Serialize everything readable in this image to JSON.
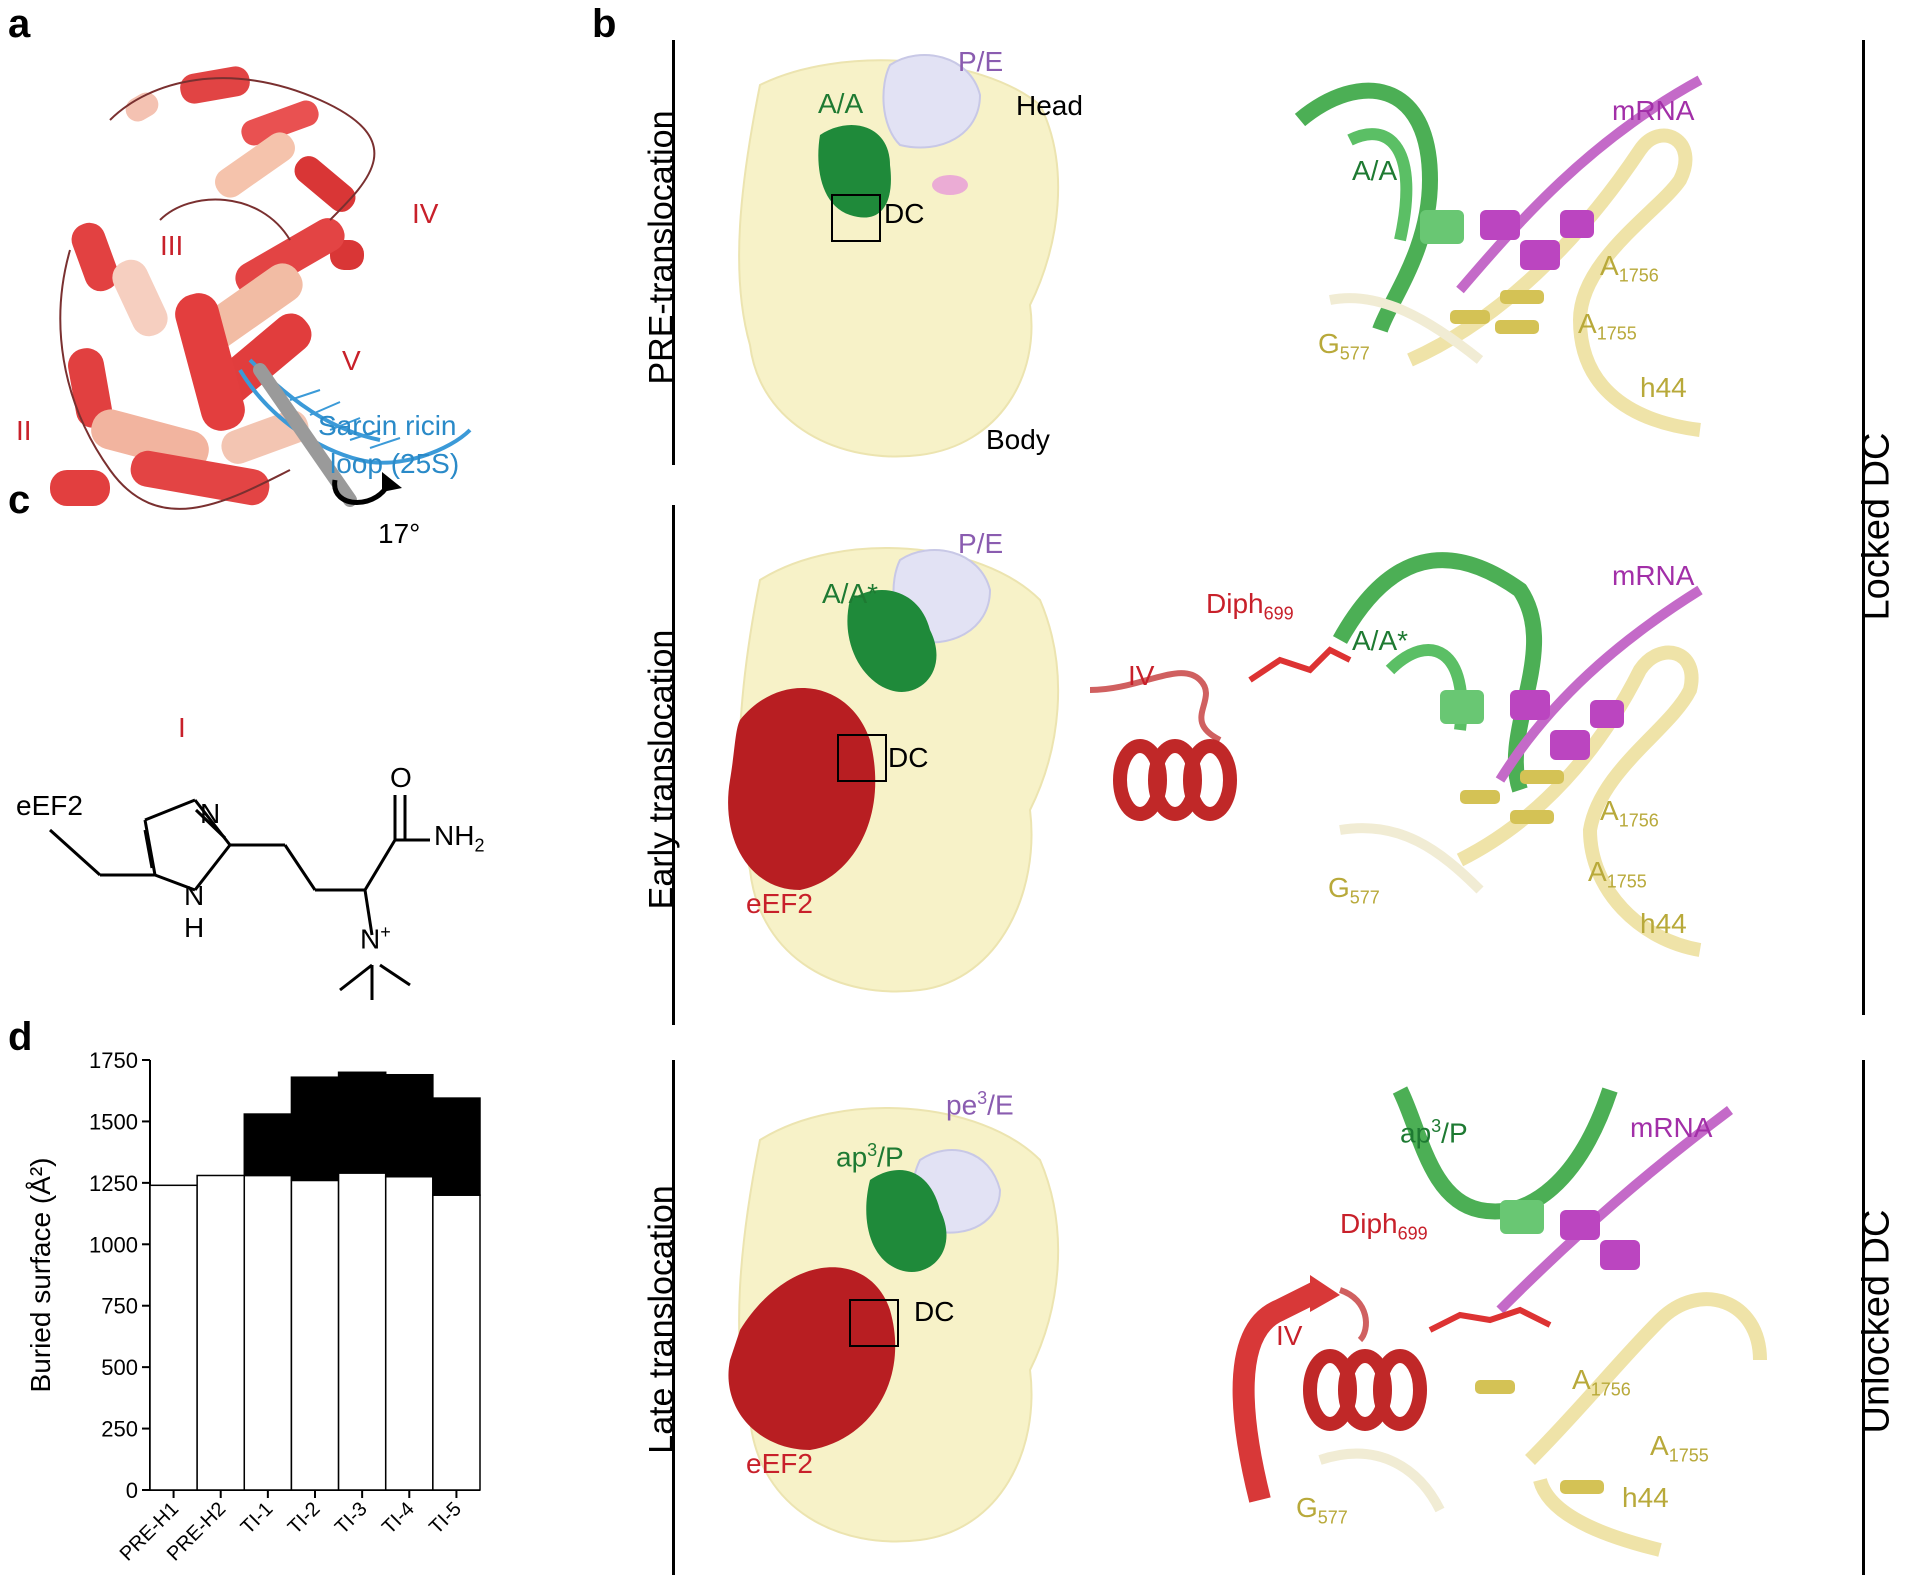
{
  "panels": {
    "a": {
      "letter": "a",
      "domains": [
        "III",
        "IV",
        "V",
        "II",
        "I"
      ],
      "srl_label_line1": "Sarcin ricin",
      "srl_label_line2": "loop (25S)",
      "rotation_label": "17°"
    },
    "b": {
      "letter": "b",
      "rows": [
        {
          "title": "PRE-translocation",
          "a_site": "A/A",
          "p_site": "P/E",
          "head": "Head",
          "body": "Body",
          "dc": "DC",
          "detail": {
            "trna": "A/A",
            "mrna": "mRNA",
            "a1756": "A",
            "a1756_sub": "1756",
            "a1755": "A",
            "a1755_sub": "1755",
            "g577": "G",
            "g577_sub": "577",
            "h44": "h44"
          }
        },
        {
          "title": "Early translocation",
          "a_site": "A/A*",
          "p_site": "P/E",
          "eef2": "eEF2",
          "dc": "DC",
          "detail": {
            "trna": "A/A*",
            "mrna": "mRNA",
            "diph": "Diph",
            "diph_sub": "699",
            "iv": "IV",
            "a1756": "A",
            "a1756_sub": "1756",
            "a1755": "A",
            "a1755_sub": "1755",
            "g577": "G",
            "g577_sub": "577",
            "h44": "h44"
          }
        },
        {
          "title": "Late translocation",
          "a_site": "ap",
          "a_site_sup": "3",
          "a_site_rest": "/P",
          "p_site": "pe",
          "p_site_sup": "3",
          "p_site_rest": "/E",
          "eef2": "eEF2",
          "dc": "DC",
          "detail": {
            "trna": "ap",
            "trna_sup": "3",
            "trna_rest": "/P",
            "mrna": "mRNA",
            "diph": "Diph",
            "diph_sub": "699",
            "iv": "IV",
            "a1756": "A",
            "a1756_sub": "1756",
            "a1755": "A",
            "a1755_sub": "1755",
            "g577": "G",
            "g577_sub": "577",
            "h44": "h44"
          }
        }
      ],
      "locked_label": "Locked DC",
      "unlocked_label": "Unlocked DC"
    },
    "c": {
      "letter": "c",
      "eef2": "eEF2",
      "n": "N",
      "nh": "N",
      "h": "H",
      "o": "O",
      "nh2": "NH",
      "nh2_sub": "2",
      "nplus": "N",
      "plus": "+"
    },
    "d": {
      "letter": "d"
    }
  },
  "chart_data": {
    "type": "bar",
    "categories": [
      "PRE-H1",
      "PRE-H2",
      "TI-1",
      "TI-2",
      "TI-3",
      "TI-4",
      "TI-5"
    ],
    "series": [
      {
        "values": [
          1240,
          1280,
          1280,
          1260,
          1290,
          1275,
          1200
        ],
        "color": "#ffffff"
      },
      {
        "values": [
          0,
          0,
          250,
          420,
          410,
          415,
          395
        ],
        "color": "#000000"
      }
    ],
    "ylabel": "Buried surface (Å²)",
    "ylim": [
      0,
      1750
    ],
    "yticks": [
      0,
      250,
      500,
      750,
      1000,
      1250,
      1500,
      1750
    ],
    "ytick_labels": [
      "0",
      "250",
      "500",
      "750",
      "1000",
      "1250",
      "1500",
      "1750"
    ]
  },
  "colors": {
    "red": "#c8202a",
    "green": "#1e7a32",
    "purple": "#8a5cb0",
    "blue": "#2a8ac8",
    "olive": "#b8a93a",
    "magenta": "#b040b8",
    "cream": "#f7f2c8"
  }
}
